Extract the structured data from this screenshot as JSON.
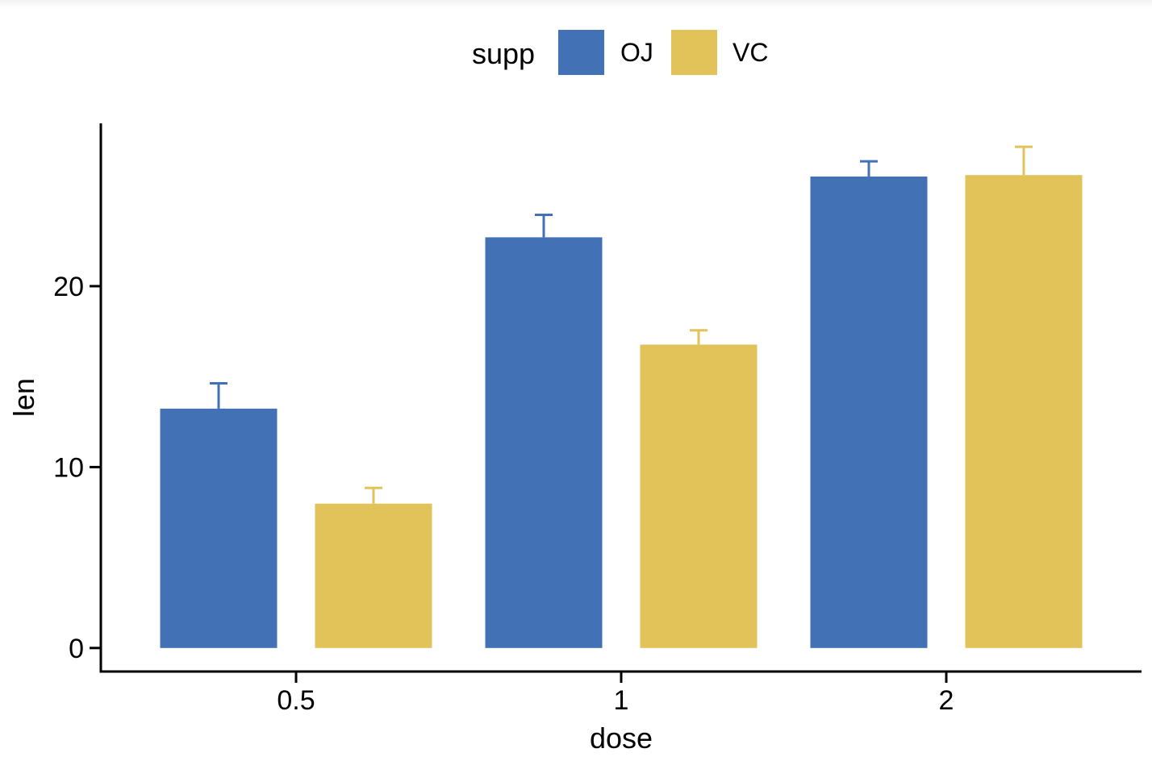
{
  "chart_data": {
    "type": "bar",
    "title": "",
    "xlabel": "dose",
    "ylabel": "len",
    "categories": [
      "0.5",
      "1",
      "2"
    ],
    "legend": {
      "title": "supp",
      "position": "top"
    },
    "series": [
      {
        "name": "OJ",
        "color": "#4271B6",
        "values": [
          13.23,
          22.7,
          26.06
        ],
        "error_upper": [
          14.63,
          23.94,
          26.9
        ]
      },
      {
        "name": "VC",
        "color": "#E2C35A",
        "values": [
          7.98,
          16.77,
          26.14
        ],
        "error_upper": [
          8.85,
          17.56,
          27.7
        ]
      }
    ],
    "yticks": [
      0,
      10,
      20
    ],
    "ytick_labels": [
      "0",
      "10",
      "20"
    ],
    "ylim": [
      -1.3,
      29.0
    ],
    "grid": false
  }
}
